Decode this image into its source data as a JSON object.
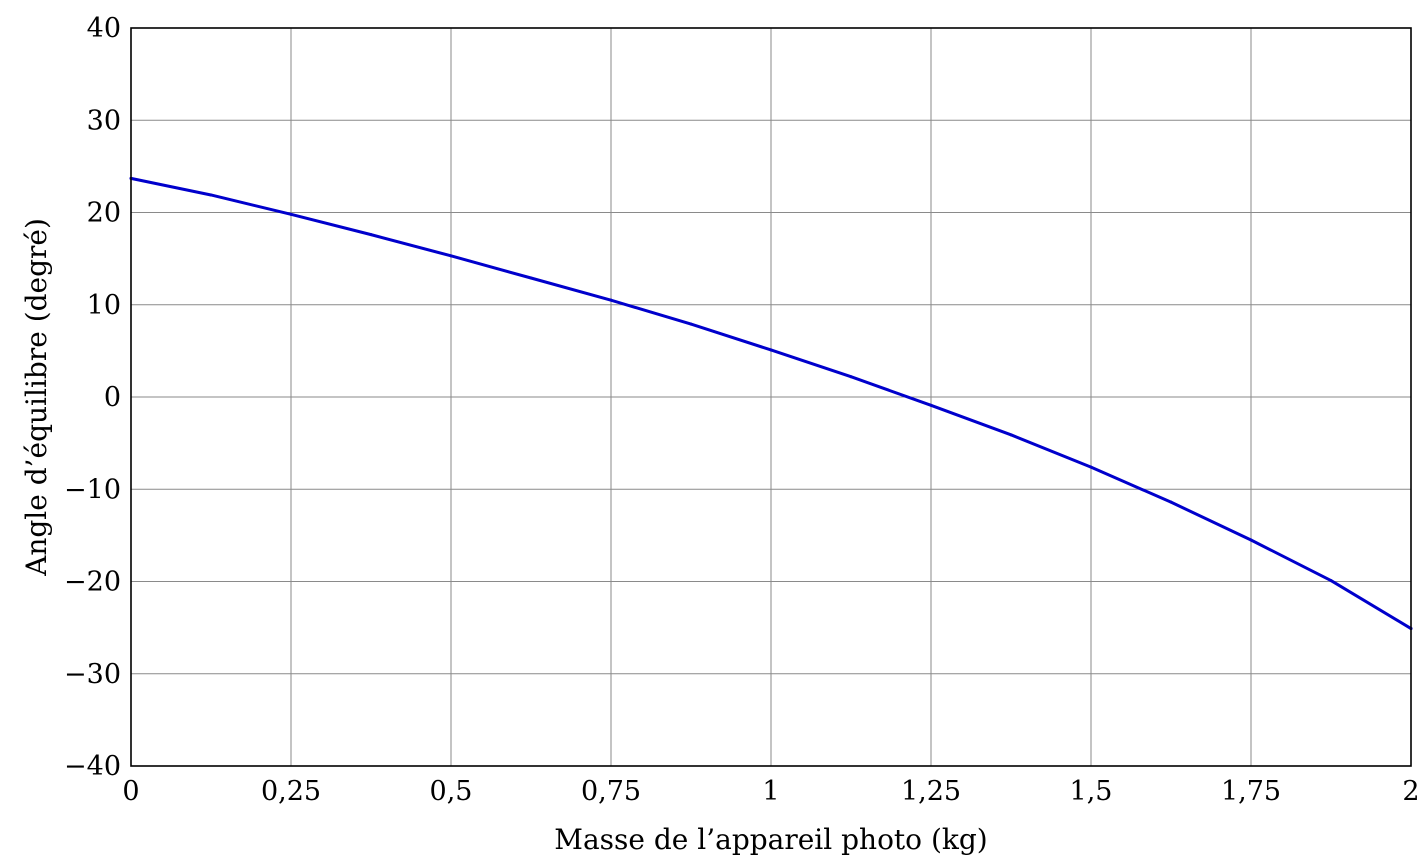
{
  "chart_data": {
    "type": "line",
    "title": "",
    "xlabel": "Masse de l’appareil photo (kg)",
    "ylabel": "Angle d’équilibre (degré)",
    "xlim": [
      0,
      2
    ],
    "ylim": [
      -40,
      40
    ],
    "grid": true,
    "x_ticks": [
      {
        "value": 0,
        "label": "0"
      },
      {
        "value": 0.25,
        "label": "0,25"
      },
      {
        "value": 0.5,
        "label": "0,5"
      },
      {
        "value": 0.75,
        "label": "0,75"
      },
      {
        "value": 1,
        "label": "1"
      },
      {
        "value": 1.25,
        "label": "1,25"
      },
      {
        "value": 1.5,
        "label": "1,5"
      },
      {
        "value": 1.75,
        "label": "1,75"
      },
      {
        "value": 2,
        "label": "2"
      }
    ],
    "y_ticks": [
      {
        "value": -40,
        "label": "−40"
      },
      {
        "value": -30,
        "label": "−30"
      },
      {
        "value": -20,
        "label": "−20"
      },
      {
        "value": -10,
        "label": "−10"
      },
      {
        "value": 0,
        "label": "0"
      },
      {
        "value": 10,
        "label": "10"
      },
      {
        "value": 20,
        "label": "20"
      },
      {
        "value": 30,
        "label": "30"
      },
      {
        "value": 40,
        "label": "40"
      }
    ],
    "series": [
      {
        "color": "#0000cc",
        "x": [
          0,
          0.125,
          0.25,
          0.375,
          0.5,
          0.625,
          0.75,
          0.875,
          1.0,
          1.125,
          1.25,
          1.375,
          1.5,
          1.625,
          1.75,
          1.875,
          2.0
        ],
        "y": [
          23.7,
          21.9,
          19.8,
          17.6,
          15.3,
          12.9,
          10.5,
          7.9,
          5.1,
          2.2,
          -0.9,
          -4.1,
          -7.6,
          -11.4,
          -15.5,
          -19.9,
          -25.1
        ]
      }
    ]
  }
}
